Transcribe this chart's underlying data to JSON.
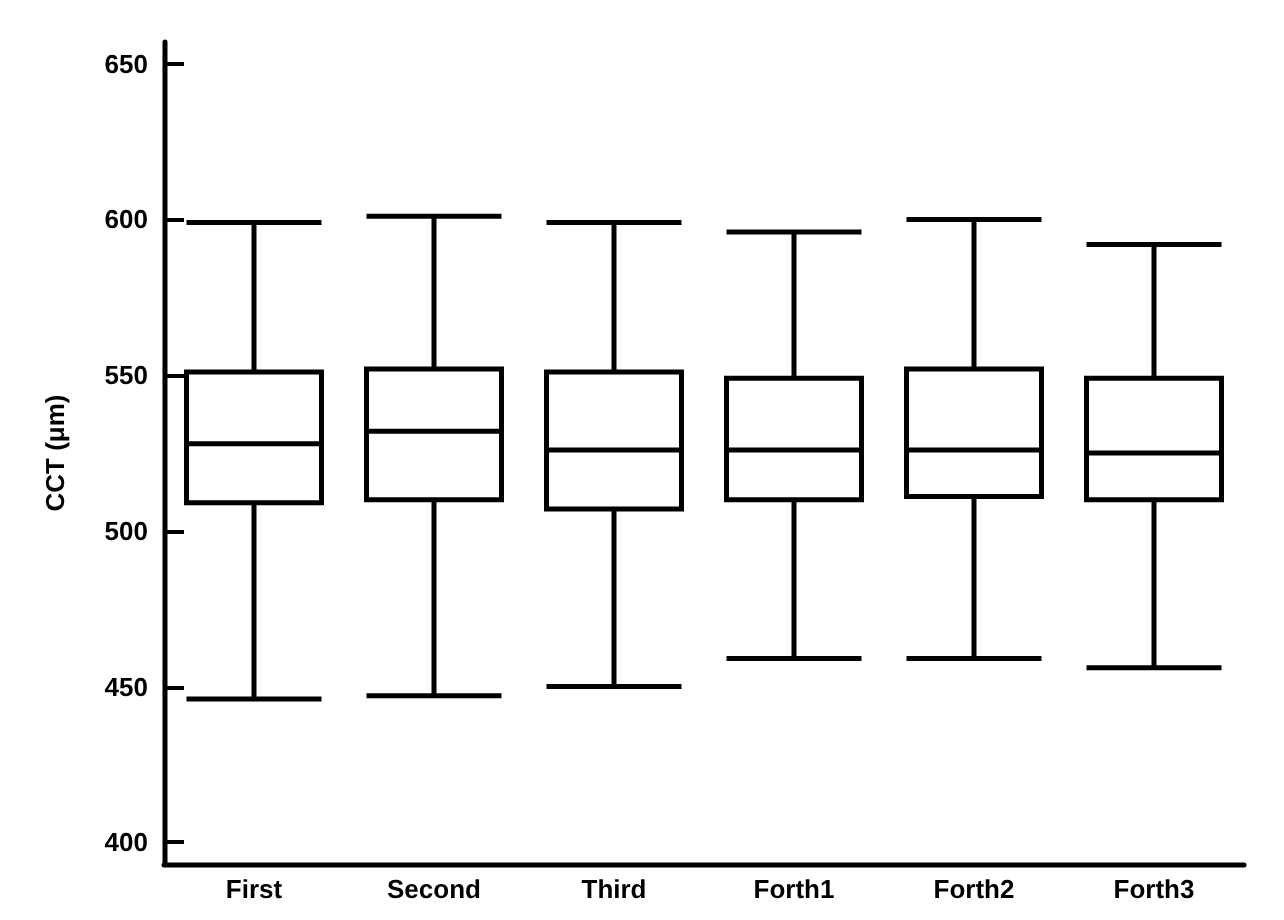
{
  "chart_data": {
    "type": "box",
    "ylabel": "CCT (μm)",
    "categories": [
      "First",
      "Second",
      "Third",
      "Forth1",
      "Forth2",
      "Forth3"
    ],
    "color": "#000000",
    "boxes": [
      {
        "low": 446,
        "q1": 509,
        "median": 528,
        "q3": 551,
        "high": 599
      },
      {
        "low": 447,
        "q1": 510,
        "median": 532,
        "q3": 552,
        "high": 601
      },
      {
        "low": 450,
        "q1": 507,
        "median": 526,
        "q3": 551,
        "high": 599
      },
      {
        "low": 459,
        "q1": 510,
        "median": 526,
        "q3": 549,
        "high": 596
      },
      {
        "low": 459,
        "q1": 511,
        "median": 526,
        "q3": 552,
        "high": 600
      },
      {
        "low": 456,
        "q1": 510,
        "median": 525,
        "q3": 549,
        "high": 592
      }
    ],
    "ylim": [
      393,
      657
    ],
    "yticks": [
      400,
      450,
      500,
      550,
      600,
      650
    ]
  }
}
